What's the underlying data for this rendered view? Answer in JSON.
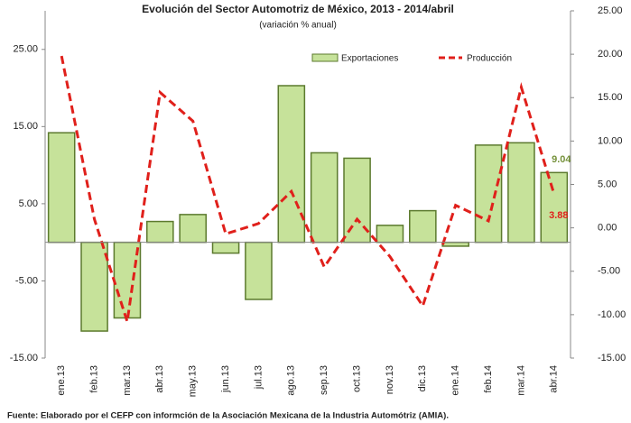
{
  "chart_data": {
    "type": "bar_line",
    "title": "Evolución del Sector Automotriz de México, 2013 - 2014/abril",
    "subtitle": "(variación % anual)",
    "source": "Fuente: Elaborado por el CEFP con informción de la Asociación Mexicana de la Industria Automótriz (AMIA).",
    "categories": [
      "ene.13",
      "feb.13",
      "mar.13",
      "abr.13",
      "may.13",
      "jun.13",
      "jul.13",
      "ago.13",
      "sep.13",
      "oct.13",
      "nov.13",
      "dic.13",
      "ene.14",
      "feb.14",
      "mar.14",
      "abr.14"
    ],
    "series": [
      {
        "name": "Exportaciones",
        "color": "#c6e29a",
        "type": "bar",
        "values": [
          14.2,
          -11.5,
          -9.8,
          2.7,
          3.6,
          -1.4,
          -7.4,
          20.3,
          11.6,
          10.9,
          2.2,
          4.1,
          -0.5,
          12.6,
          12.9,
          9.04
        ]
      },
      {
        "name": "Producción",
        "color": "#e0201b",
        "type": "line",
        "axis": "y2",
        "values": [
          19.8,
          1.0,
          -10.8,
          15.6,
          12.3,
          -0.7,
          0.5,
          4.2,
          -4.5,
          1.0,
          -3.3,
          -9.0,
          2.6,
          0.8,
          16.2,
          3.88
        ]
      }
    ],
    "ylim": [
      -15,
      30
    ],
    "yticks": [
      {
        "value": 25,
        "label": "25.00"
      },
      {
        "value": 15,
        "label": "15.00"
      },
      {
        "value": 5,
        "label": "5.00"
      },
      {
        "value": -5,
        "label": "-5.00"
      },
      {
        "value": -15,
        "label": "-15.00"
      }
    ],
    "y2lim": [
      -15,
      25
    ],
    "y2ticks": [
      {
        "value": 25,
        "label": "25.00"
      },
      {
        "value": 20,
        "label": "20.00"
      },
      {
        "value": 15,
        "label": "15.00"
      },
      {
        "value": 10,
        "label": "10.00"
      },
      {
        "value": 5,
        "label": "5.00"
      },
      {
        "value": 0,
        "label": "0.00"
      },
      {
        "value": -5,
        "label": "-5.00"
      },
      {
        "value": -10,
        "label": "-10.00"
      },
      {
        "value": -15,
        "label": "-15.00"
      }
    ],
    "legend": "top"
  }
}
